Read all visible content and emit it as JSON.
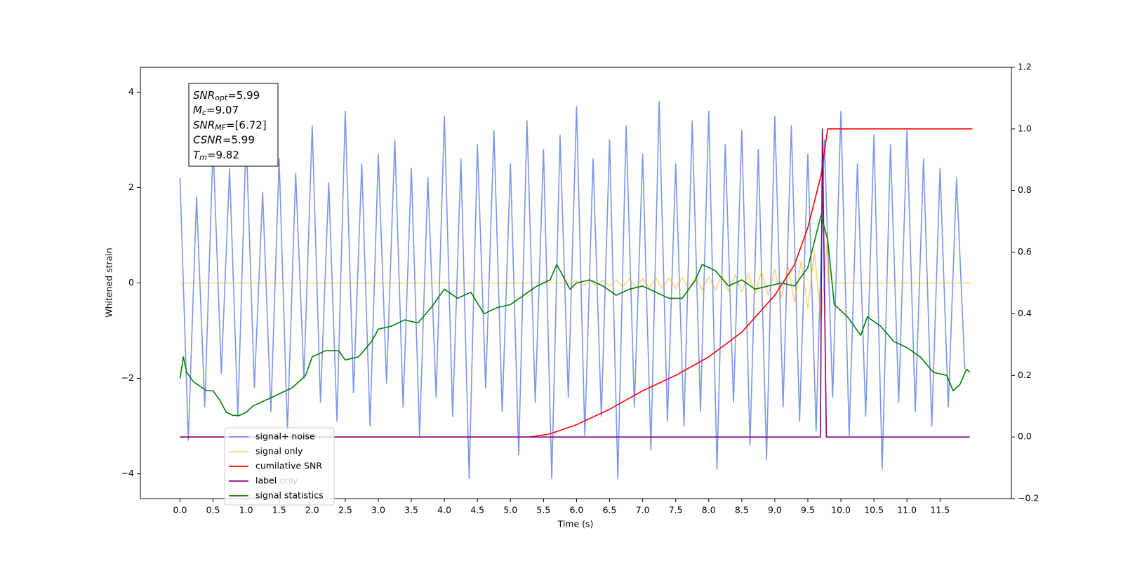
{
  "chart_data": {
    "type": "line",
    "xlabel": "Time (s)",
    "ylabel": "Whitened strain",
    "xlim": [
      -0.6,
      12.58
    ],
    "ylim": [
      -4.52,
      4.52
    ],
    "y2lim": [
      -0.2,
      1.2
    ],
    "xticks": [
      {
        "value": 0,
        "label": "0.0"
      },
      0.5,
      {
        "value": 1,
        "label": "1.0"
      },
      1.5,
      {
        "value": 2,
        "label": "2.0"
      },
      2.5,
      {
        "value": 3,
        "label": "3.0"
      },
      3.5,
      {
        "value": 4,
        "label": "4.0"
      },
      4.5,
      {
        "value": 5,
        "label": "5.0"
      },
      5.5,
      {
        "value": 6,
        "label": "6.0"
      },
      6.5,
      {
        "value": 7,
        "label": "7.0"
      },
      7.5,
      {
        "value": 8,
        "label": "8.0"
      },
      8.5,
      {
        "value": 9,
        "label": "9.0"
      },
      9.5,
      {
        "value": 10,
        "label": "10.0"
      },
      10.5,
      {
        "value": 11,
        "label": "11.0"
      },
      11.5
    ],
    "yticks": [
      {
        "value": -4,
        "label": "−4"
      },
      {
        "value": -2,
        "label": "−2"
      },
      0,
      2,
      4
    ],
    "y2ticks": [
      {
        "value": -0.2,
        "label": "−0.2"
      },
      {
        "value": 0,
        "label": "0.0"
      },
      0.2,
      0.4,
      0.6,
      0.8,
      {
        "value": 1,
        "label": "1.0"
      },
      1.2
    ],
    "annotation_lines": [
      {
        "main": "SNR",
        "sub": "opt",
        "rest": "=5.99"
      },
      {
        "main": "M",
        "sub": "c",
        "rest": "=9.07"
      },
      {
        "main": "SNR",
        "sub": "MF",
        "rest": "=[6.72]"
      },
      {
        "main": "CSNR",
        "sub": "",
        "rest": "=5.99"
      },
      {
        "main": "T",
        "sub": "m",
        "rest": "=9.82"
      }
    ],
    "background_legend": [
      "label only"
    ],
    "legend_loc": "lower left",
    "series": [
      {
        "name": "signal+ noise",
        "color": "#4169e1",
        "alpha": 0.7,
        "axis": "y",
        "x": [
          0,
          0.125,
          0.25,
          0.375,
          0.5,
          0.625,
          0.75,
          0.875,
          1,
          1.125,
          1.25,
          1.375,
          1.5,
          1.625,
          1.75,
          1.875,
          2,
          2.125,
          2.25,
          2.375,
          2.5,
          2.625,
          2.75,
          2.875,
          3,
          3.125,
          3.25,
          3.375,
          3.5,
          3.625,
          3.75,
          3.875,
          4,
          4.125,
          4.25,
          4.375,
          4.5,
          4.625,
          4.75,
          4.875,
          5,
          5.125,
          5.25,
          5.375,
          5.5,
          5.625,
          5.75,
          5.875,
          6,
          6.125,
          6.25,
          6.375,
          6.5,
          6.625,
          6.75,
          6.875,
          7,
          7.125,
          7.25,
          7.375,
          7.5,
          7.625,
          7.75,
          7.875,
          8,
          8.125,
          8.25,
          8.375,
          8.5,
          8.625,
          8.75,
          8.875,
          9,
          9.125,
          9.25,
          9.375,
          9.5,
          9.625,
          9.75,
          9.875,
          10,
          10.125,
          10.25,
          10.375,
          10.5,
          10.625,
          10.75,
          10.875,
          11,
          11.125,
          11.25,
          11.375,
          11.5,
          11.625,
          11.75,
          11.875
        ],
        "values": [
          2.2,
          -3.3,
          1.8,
          -2.6,
          2.9,
          -1.9,
          2.4,
          -2.8,
          3.1,
          -2.2,
          1.9,
          -2.7,
          2.6,
          -3.1,
          2.3,
          -2.0,
          3.3,
          -2.5,
          2.1,
          -2.9,
          3.6,
          -2.3,
          2.5,
          -3.0,
          2.7,
          -2.1,
          3.0,
          -2.6,
          2.4,
          -3.2,
          2.2,
          -2.4,
          3.5,
          -2.8,
          2.6,
          -4.1,
          2.9,
          -2.2,
          3.2,
          -2.7,
          2.5,
          -3.6,
          3.4,
          -2.5,
          2.8,
          -4.1,
          3.1,
          -2.4,
          3.7,
          -3.2,
          2.6,
          -2.8,
          3.0,
          -4.1,
          3.3,
          -2.6,
          2.7,
          -3.5,
          3.8,
          -2.9,
          2.5,
          -3.0,
          3.4,
          -2.7,
          3.6,
          -3.9,
          2.9,
          -2.5,
          3.2,
          -3.4,
          2.8,
          -3.7,
          3.5,
          -2.6,
          3.3,
          -2.9,
          2.7,
          -3.1,
          3.0,
          -2.4,
          3.6,
          -3.2,
          2.5,
          -2.8,
          3.1,
          -3.9,
          2.9,
          -2.5,
          3.2,
          -2.7,
          2.6,
          -3.0,
          2.4,
          -2.6,
          2.2,
          -1.8
        ]
      },
      {
        "name": "signal only",
        "color": "#ffa500",
        "alpha": 0.5,
        "axis": "y",
        "x": [
          0,
          5.9,
          6.0,
          6.1,
          6.2,
          6.3,
          6.4,
          6.5,
          6.6,
          6.7,
          6.8,
          6.9,
          7.0,
          7.1,
          7.2,
          7.3,
          7.4,
          7.5,
          7.6,
          7.7,
          7.8,
          7.9,
          8.0,
          8.1,
          8.2,
          8.3,
          8.4,
          8.5,
          8.6,
          8.7,
          8.8,
          8.9,
          9.0,
          9.1,
          9.2,
          9.3,
          9.4,
          9.5,
          9.6,
          9.7,
          9.8,
          9.81,
          11.99
        ],
        "values": [
          0,
          0,
          0.04,
          -0.05,
          0.05,
          -0.06,
          0.06,
          -0.07,
          0.07,
          -0.08,
          0.08,
          -0.09,
          0.09,
          -0.1,
          0.1,
          -0.11,
          0.11,
          -0.12,
          0.12,
          -0.13,
          0.13,
          -0.14,
          0.14,
          -0.15,
          0.16,
          -0.17,
          0.18,
          -0.19,
          0.2,
          -0.22,
          0.24,
          -0.26,
          0.28,
          -0.31,
          0.35,
          -0.4,
          0.46,
          -0.54,
          0.65,
          -0.8,
          1.0,
          0,
          0
        ]
      },
      {
        "name": "cumilative SNR",
        "color": "#ff0000",
        "alpha": 1,
        "axis": "y2",
        "x": [
          0,
          5.3,
          5.6,
          6.0,
          6.5,
          7.0,
          7.5,
          8.0,
          8.5,
          9.0,
          9.3,
          9.5,
          9.7,
          9.8,
          11.99
        ],
        "values": [
          0,
          0,
          0.01,
          0.04,
          0.09,
          0.15,
          0.2,
          0.26,
          0.34,
          0.46,
          0.56,
          0.68,
          0.85,
          1.0,
          1.0
        ]
      },
      {
        "name": "label",
        "color": "#800080",
        "alpha": 1,
        "axis": "y2",
        "x": [
          0,
          9.69,
          9.72,
          9.78,
          11.95
        ],
        "values": [
          0,
          0,
          1.0,
          0,
          0
        ]
      },
      {
        "name": "signal statistics",
        "color": "#008000",
        "alpha": 1,
        "axis": "y2",
        "x": [
          0,
          0.05,
          0.1,
          0.2,
          0.4,
          0.5,
          0.6,
          0.7,
          0.8,
          0.9,
          1.0,
          1.1,
          1.3,
          1.5,
          1.7,
          1.9,
          2.0,
          2.2,
          2.4,
          2.5,
          2.7,
          2.9,
          3.0,
          3.2,
          3.4,
          3.6,
          3.8,
          4.0,
          4.2,
          4.4,
          4.6,
          4.8,
          5.0,
          5.2,
          5.4,
          5.6,
          5.7,
          5.9,
          6.0,
          6.2,
          6.4,
          6.6,
          6.8,
          7.0,
          7.2,
          7.4,
          7.6,
          7.8,
          7.9,
          8.1,
          8.3,
          8.5,
          8.7,
          8.9,
          9.1,
          9.3,
          9.5,
          9.7,
          9.8,
          9.9,
          10.1,
          10.3,
          10.4,
          10.6,
          10.8,
          11.0,
          11.2,
          11.4,
          11.6,
          11.7,
          11.8,
          11.9,
          11.95
        ],
        "values": [
          0.19,
          0.26,
          0.21,
          0.18,
          0.15,
          0.15,
          0.12,
          0.08,
          0.07,
          0.07,
          0.08,
          0.1,
          0.12,
          0.14,
          0.16,
          0.2,
          0.26,
          0.28,
          0.28,
          0.25,
          0.26,
          0.31,
          0.35,
          0.36,
          0.38,
          0.37,
          0.42,
          0.48,
          0.45,
          0.47,
          0.4,
          0.42,
          0.43,
          0.46,
          0.49,
          0.51,
          0.56,
          0.48,
          0.5,
          0.51,
          0.49,
          0.46,
          0.48,
          0.49,
          0.47,
          0.45,
          0.45,
          0.51,
          0.56,
          0.54,
          0.49,
          0.51,
          0.48,
          0.49,
          0.5,
          0.49,
          0.55,
          0.72,
          0.64,
          0.43,
          0.39,
          0.33,
          0.39,
          0.36,
          0.31,
          0.29,
          0.26,
          0.21,
          0.2,
          0.15,
          0.17,
          0.22,
          0.21
        ]
      }
    ]
  }
}
